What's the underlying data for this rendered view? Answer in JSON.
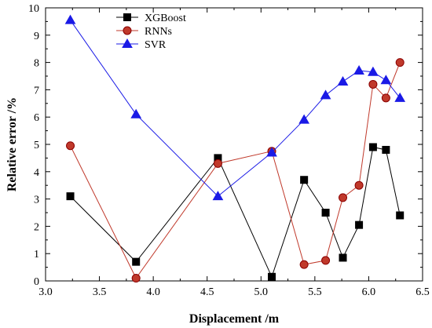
{
  "chart_data": {
    "type": "line",
    "xlabel": "Displacement /m",
    "ylabel": "Relative error /%",
    "xlim": [
      3.0,
      6.5
    ],
    "ylim": [
      0,
      10
    ],
    "xticks": [
      3.0,
      3.5,
      4.0,
      4.5,
      5.0,
      5.5,
      6.0,
      6.5
    ],
    "xtick_labels": [
      "3.0",
      "3.5",
      "4.0",
      "4.5",
      "5.0",
      "5.5",
      "6.0",
      "6.5"
    ],
    "yticks": [
      0,
      1,
      2,
      3,
      4,
      5,
      6,
      7,
      8,
      9,
      10
    ],
    "ytick_labels": [
      "0",
      "1",
      "2",
      "3",
      "4",
      "5",
      "6",
      "7",
      "8",
      "9",
      "10"
    ],
    "grid": false,
    "legend_position": "top-center",
    "series": [
      {
        "name": "XGBoost",
        "color": "#000000",
        "marker": "square",
        "x": [
          3.23,
          3.84,
          4.6,
          5.1,
          5.4,
          5.6,
          5.76,
          5.91,
          6.04,
          6.16,
          6.29
        ],
        "y": [
          3.1,
          0.7,
          4.5,
          0.15,
          3.7,
          2.5,
          0.85,
          2.05,
          4.9,
          4.8,
          2.4
        ]
      },
      {
        "name": "RNNs",
        "color": "#c0392b",
        "marker": "circle",
        "x": [
          3.23,
          3.84,
          4.6,
          5.1,
          5.4,
          5.6,
          5.76,
          5.91,
          6.04,
          6.16,
          6.29
        ],
        "y": [
          4.95,
          0.1,
          4.3,
          4.75,
          0.6,
          0.75,
          3.05,
          3.5,
          7.2,
          6.7,
          8.0
        ]
      },
      {
        "name": "SVR",
        "color": "#1a1ae6",
        "marker": "triangle",
        "x": [
          3.23,
          3.84,
          4.6,
          5.1,
          5.4,
          5.6,
          5.76,
          5.91,
          6.04,
          6.16,
          6.29
        ],
        "y": [
          9.55,
          6.1,
          3.1,
          4.7,
          5.9,
          6.8,
          7.3,
          7.7,
          7.65,
          7.35,
          6.7
        ]
      }
    ]
  }
}
